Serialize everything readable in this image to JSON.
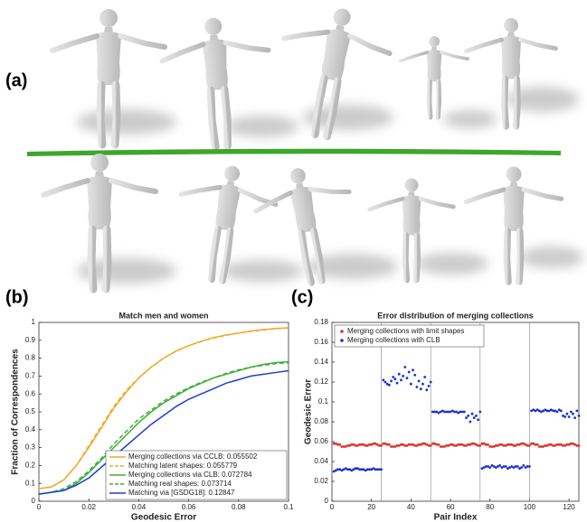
{
  "panel_labels": [
    "(a)",
    "(b)",
    "(c)"
  ],
  "chart_data": [
    {
      "type": "line",
      "title": "Match men and women",
      "x_label": "Geodesic Error",
      "y_label": "Fraction of Correspondences",
      "x": [
        0,
        0.005,
        0.01,
        0.015,
        0.02,
        0.025,
        0.03,
        0.035,
        0.04,
        0.045,
        0.05,
        0.055,
        0.06,
        0.065,
        0.07,
        0.075,
        0.08,
        0.085,
        0.09,
        0.095,
        0.1
      ],
      "xlim": [
        0,
        0.1
      ],
      "xticks": [
        0,
        0.02,
        0.04,
        0.06,
        0.08,
        0.1
      ],
      "ylim": [
        0,
        1
      ],
      "yticks": [
        0,
        0.1,
        0.2,
        0.3,
        0.4,
        0.5,
        0.6,
        0.7,
        0.8,
        0.9,
        1
      ],
      "legend": "lower right",
      "series": [
        {
          "name": "Merging collections via CCLB: 0.055502",
          "color": "#f2a92c",
          "dash": false,
          "values": [
            0.07,
            0.08,
            0.12,
            0.2,
            0.3,
            0.41,
            0.52,
            0.61,
            0.69,
            0.75,
            0.8,
            0.84,
            0.87,
            0.895,
            0.915,
            0.93,
            0.94,
            0.952,
            0.96,
            0.966,
            0.97
          ]
        },
        {
          "name": "Matching latent shapes: 0.055779",
          "color": "#f2a92c",
          "dash": true,
          "values": [
            0.07,
            0.08,
            0.12,
            0.2,
            0.31,
            0.42,
            0.53,
            0.62,
            0.69,
            0.75,
            0.8,
            0.84,
            0.87,
            0.893,
            0.913,
            0.928,
            0.94,
            0.95,
            0.958,
            0.965,
            0.97
          ]
        },
        {
          "name": "Merging collections via CLB: 0.072784",
          "color": "#3fae3a",
          "dash": false,
          "values": [
            0.04,
            0.05,
            0.06,
            0.1,
            0.16,
            0.23,
            0.3,
            0.37,
            0.44,
            0.5,
            0.55,
            0.59,
            0.63,
            0.66,
            0.69,
            0.71,
            0.73,
            0.75,
            0.765,
            0.775,
            0.78
          ]
        },
        {
          "name": "Matching real shapes: 0.073714",
          "color": "#3fae3a",
          "dash": true,
          "values": [
            0.04,
            0.05,
            0.07,
            0.11,
            0.17,
            0.24,
            0.32,
            0.39,
            0.46,
            0.51,
            0.56,
            0.6,
            0.635,
            0.665,
            0.69,
            0.715,
            0.735,
            0.75,
            0.76,
            0.77,
            0.775
          ]
        },
        {
          "name": "Matching via [GSDG18]: 0.12847",
          "color": "#1c3ed6",
          "dash": false,
          "values": [
            0.04,
            0.05,
            0.06,
            0.09,
            0.13,
            0.19,
            0.25,
            0.31,
            0.37,
            0.43,
            0.48,
            0.53,
            0.57,
            0.6,
            0.63,
            0.66,
            0.68,
            0.7,
            0.71,
            0.72,
            0.73
          ]
        }
      ]
    },
    {
      "type": "scatter",
      "title": "Error distribution of merging collections",
      "x_label": "Pair Index",
      "y_label": "Geodesic Error",
      "x": [
        1,
        2,
        3,
        4,
        5,
        6,
        7,
        8,
        9,
        10,
        11,
        12,
        13,
        14,
        15,
        16,
        17,
        18,
        19,
        20,
        21,
        22,
        23,
        24,
        25,
        26,
        27,
        28,
        29,
        30,
        31,
        32,
        33,
        34,
        35,
        36,
        37,
        38,
        39,
        40,
        41,
        42,
        43,
        44,
        45,
        46,
        47,
        48,
        49,
        50,
        51,
        52,
        53,
        54,
        55,
        56,
        57,
        58,
        59,
        60,
        61,
        62,
        63,
        64,
        65,
        66,
        67,
        68,
        69,
        70,
        71,
        72,
        73,
        74,
        75,
        76,
        77,
        78,
        79,
        80,
        81,
        82,
        83,
        84,
        85,
        86,
        87,
        88,
        89,
        90,
        91,
        92,
        93,
        94,
        95,
        96,
        97,
        98,
        99,
        100,
        101,
        102,
        103,
        104,
        105,
        106,
        107,
        108,
        109,
        110,
        111,
        112,
        113,
        114,
        115,
        116,
        117,
        118,
        119,
        120,
        121,
        122,
        123,
        124,
        125
      ],
      "xlim": [
        0,
        125
      ],
      "xticks": [
        0,
        20,
        40,
        60,
        80,
        100,
        120
      ],
      "ylim": [
        0,
        0.18
      ],
      "yticks": [
        0,
        0.02,
        0.04,
        0.06,
        0.08,
        0.1,
        0.12,
        0.14,
        0.16,
        0.18
      ],
      "vlines": [
        25,
        50,
        75,
        100
      ],
      "legend": "upper left",
      "series": [
        {
          "name": "Merging collections with limit shapes",
          "color": "#e0302a",
          "values": [
            0.058,
            0.058,
            0.057,
            0.057,
            0.055,
            0.055,
            0.055,
            0.056,
            0.056,
            0.057,
            0.057,
            0.056,
            0.056,
            0.057,
            0.057,
            0.057,
            0.056,
            0.056,
            0.057,
            0.057,
            0.058,
            0.058,
            0.057,
            0.056,
            0.056,
            0.058,
            0.058,
            0.057,
            0.057,
            0.055,
            0.055,
            0.055,
            0.056,
            0.056,
            0.057,
            0.057,
            0.056,
            0.056,
            0.057,
            0.057,
            0.057,
            0.056,
            0.056,
            0.057,
            0.057,
            0.058,
            0.058,
            0.057,
            0.056,
            0.056,
            0.058,
            0.058,
            0.057,
            0.057,
            0.055,
            0.055,
            0.055,
            0.056,
            0.056,
            0.057,
            0.057,
            0.056,
            0.056,
            0.057,
            0.057,
            0.057,
            0.056,
            0.056,
            0.057,
            0.057,
            0.058,
            0.058,
            0.057,
            0.056,
            0.056,
            0.058,
            0.058,
            0.057,
            0.057,
            0.055,
            0.055,
            0.055,
            0.056,
            0.056,
            0.057,
            0.057,
            0.056,
            0.056,
            0.057,
            0.057,
            0.057,
            0.056,
            0.056,
            0.057,
            0.057,
            0.058,
            0.058,
            0.057,
            0.056,
            0.056,
            0.058,
            0.058,
            0.057,
            0.057,
            0.055,
            0.055,
            0.055,
            0.056,
            0.056,
            0.057,
            0.057,
            0.056,
            0.056,
            0.057,
            0.057,
            0.057,
            0.056,
            0.056,
            0.057,
            0.057,
            0.058,
            0.058,
            0.057,
            0.056,
            0.056
          ]
        },
        {
          "name": "Merging collections with CLB",
          "color": "#1c2fd6",
          "values": [
            0.03,
            0.031,
            0.032,
            0.032,
            0.031,
            0.032,
            0.033,
            0.032,
            0.032,
            0.031,
            0.032,
            0.033,
            0.033,
            0.032,
            0.032,
            0.032,
            0.031,
            0.032,
            0.032,
            0.032,
            0.033,
            0.032,
            0.032,
            0.032,
            0.032,
            0.122,
            0.12,
            0.118,
            0.117,
            0.121,
            0.125,
            0.123,
            0.119,
            0.128,
            0.122,
            0.126,
            0.135,
            0.124,
            0.13,
            0.118,
            0.132,
            0.127,
            0.115,
            0.121,
            0.113,
            0.118,
            0.125,
            0.112,
            0.116,
            0.12,
            0.09,
            0.09,
            0.09,
            0.089,
            0.09,
            0.091,
            0.09,
            0.09,
            0.09,
            0.09,
            0.091,
            0.09,
            0.09,
            0.089,
            0.09,
            0.09,
            0.09,
            0.084,
            0.086,
            0.08,
            0.088,
            0.084,
            0.086,
            0.082,
            0.09,
            0.033,
            0.034,
            0.035,
            0.035,
            0.034,
            0.036,
            0.035,
            0.034,
            0.035,
            0.036,
            0.034,
            0.035,
            0.035,
            0.033,
            0.034,
            0.035,
            0.034,
            0.035,
            0.035,
            0.033,
            0.034,
            0.036,
            0.034,
            0.035,
            0.035,
            0.091,
            0.092,
            0.091,
            0.092,
            0.091,
            0.09,
            0.091,
            0.092,
            0.091,
            0.091,
            0.092,
            0.091,
            0.091,
            0.09,
            0.092,
            0.091,
            0.086,
            0.085,
            0.088,
            0.085,
            0.09,
            0.088,
            0.084,
            0.091,
            0.086
          ]
        }
      ]
    }
  ]
}
